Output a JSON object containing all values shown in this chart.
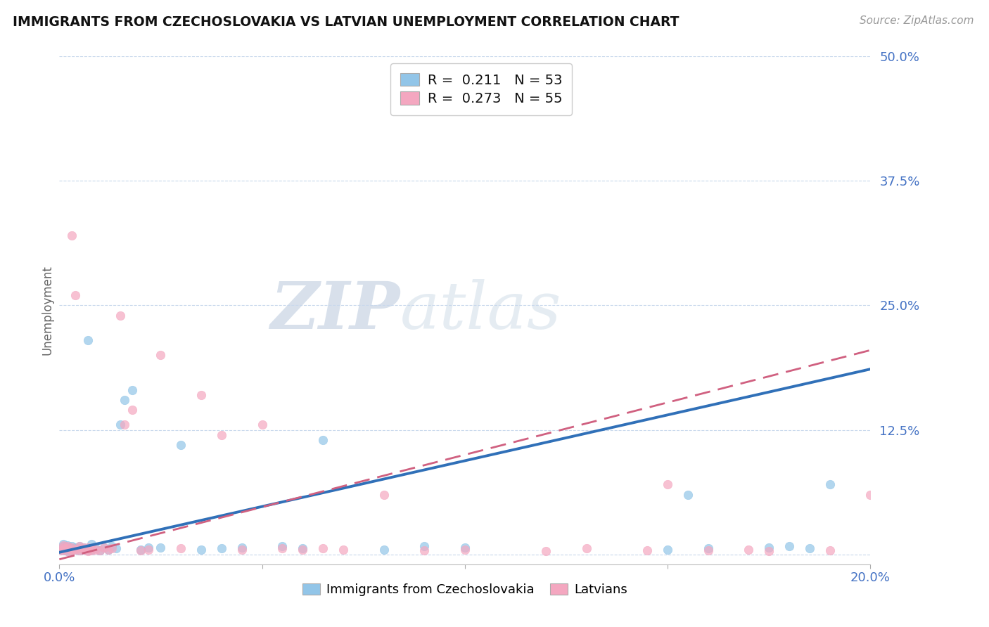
{
  "title": "IMMIGRANTS FROM CZECHOSLOVAKIA VS LATVIAN UNEMPLOYMENT CORRELATION CHART",
  "source": "Source: ZipAtlas.com",
  "ylabel": "Unemployment",
  "xlim": [
    0,
    0.2
  ],
  "ylim": [
    -0.01,
    0.5
  ],
  "yticks": [
    0,
    0.125,
    0.25,
    0.375,
    0.5
  ],
  "ytick_labels": [
    "",
    "12.5%",
    "25.0%",
    "37.5%",
    "50.0%"
  ],
  "xticks": [
    0.0,
    0.05,
    0.1,
    0.15,
    0.2
  ],
  "xtick_labels": [
    "0.0%",
    "",
    "",
    "",
    "20.0%"
  ],
  "blue_R": 0.211,
  "blue_N": 53,
  "pink_R": 0.273,
  "pink_N": 55,
  "blue_color": "#92C5E8",
  "pink_color": "#F4A7C0",
  "trend_blue_color": "#3070B8",
  "trend_pink_color": "#D06080",
  "legend_label_blue": "Immigrants from Czechoslovakia",
  "legend_label_pink": "Latvians",
  "watermark_zip": "ZIP",
  "watermark_atlas": "atlas",
  "blue_scatter_x": [
    0.0005,
    0.001,
    0.001,
    0.001,
    0.001,
    0.002,
    0.002,
    0.002,
    0.002,
    0.003,
    0.003,
    0.003,
    0.004,
    0.004,
    0.005,
    0.005,
    0.005,
    0.006,
    0.006,
    0.007,
    0.007,
    0.007,
    0.008,
    0.008,
    0.009,
    0.01,
    0.011,
    0.012,
    0.013,
    0.014,
    0.015,
    0.016,
    0.018,
    0.02,
    0.022,
    0.025,
    0.03,
    0.035,
    0.04,
    0.045,
    0.055,
    0.06,
    0.065,
    0.08,
    0.09,
    0.1,
    0.15,
    0.155,
    0.16,
    0.175,
    0.18,
    0.185,
    0.19
  ],
  "blue_scatter_y": [
    0.005,
    0.004,
    0.006,
    0.008,
    0.01,
    0.003,
    0.005,
    0.007,
    0.009,
    0.004,
    0.006,
    0.008,
    0.005,
    0.007,
    0.004,
    0.006,
    0.008,
    0.005,
    0.007,
    0.004,
    0.006,
    0.215,
    0.005,
    0.01,
    0.006,
    0.004,
    0.007,
    0.005,
    0.008,
    0.006,
    0.13,
    0.155,
    0.165,
    0.005,
    0.007,
    0.007,
    0.11,
    0.005,
    0.006,
    0.007,
    0.008,
    0.006,
    0.115,
    0.005,
    0.008,
    0.007,
    0.005,
    0.06,
    0.006,
    0.007,
    0.008,
    0.006,
    0.07
  ],
  "pink_scatter_x": [
    0.0005,
    0.001,
    0.001,
    0.001,
    0.002,
    0.002,
    0.002,
    0.003,
    0.003,
    0.003,
    0.003,
    0.004,
    0.004,
    0.005,
    0.005,
    0.005,
    0.006,
    0.006,
    0.007,
    0.007,
    0.007,
    0.008,
    0.008,
    0.009,
    0.01,
    0.011,
    0.012,
    0.013,
    0.015,
    0.016,
    0.018,
    0.02,
    0.022,
    0.025,
    0.03,
    0.035,
    0.04,
    0.045,
    0.05,
    0.055,
    0.06,
    0.065,
    0.07,
    0.08,
    0.09,
    0.1,
    0.12,
    0.13,
    0.145,
    0.15,
    0.16,
    0.17,
    0.175,
    0.19,
    0.2
  ],
  "pink_scatter_y": [
    0.004,
    0.005,
    0.007,
    0.009,
    0.003,
    0.006,
    0.008,
    0.004,
    0.005,
    0.007,
    0.32,
    0.005,
    0.26,
    0.004,
    0.006,
    0.008,
    0.005,
    0.007,
    0.003,
    0.005,
    0.007,
    0.004,
    0.006,
    0.005,
    0.004,
    0.007,
    0.005,
    0.006,
    0.24,
    0.13,
    0.145,
    0.004,
    0.005,
    0.2,
    0.006,
    0.16,
    0.12,
    0.005,
    0.13,
    0.006,
    0.005,
    0.006,
    0.005,
    0.06,
    0.004,
    0.005,
    0.003,
    0.006,
    0.004,
    0.07,
    0.004,
    0.005,
    0.003,
    0.004,
    0.06
  ]
}
